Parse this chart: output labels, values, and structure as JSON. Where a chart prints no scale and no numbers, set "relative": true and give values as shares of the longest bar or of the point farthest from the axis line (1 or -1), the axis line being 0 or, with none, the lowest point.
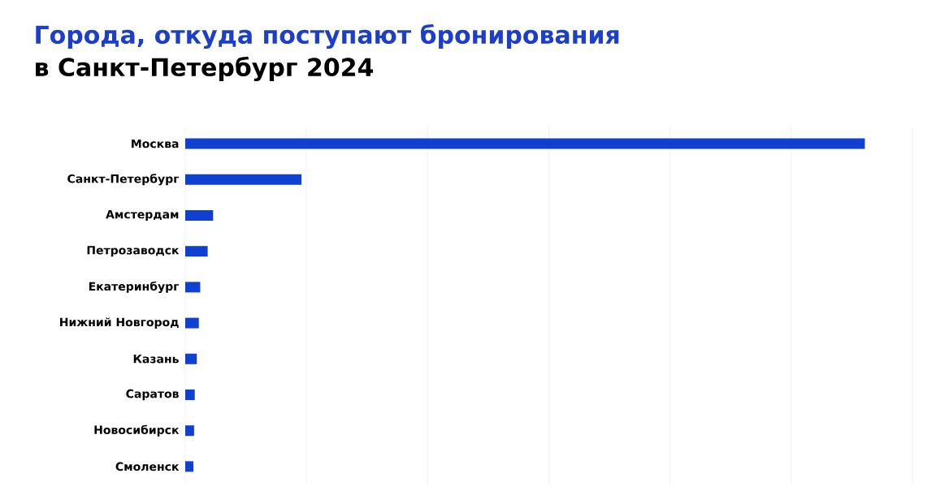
{
  "chart_data": {
    "type": "bar",
    "orientation": "horizontal",
    "relative": true,
    "title": "Города, откуда поступают бронирования",
    "subtitle": "в Санкт-Петербург 2024",
    "categories": [
      "Москва",
      "Санкт-Петербург",
      "Амстердам",
      "Петрозаводск",
      "Екатеринбург",
      "Нижний Новгород",
      "Казань",
      "Саратов",
      "Новосибирск",
      "Смоленск"
    ],
    "values": [
      1,
      0.171,
      0.041,
      0.033,
      0.022,
      0.02,
      0.017,
      0.014,
      0.013,
      0.012
    ],
    "color": "#1040d0",
    "grid": "x"
  }
}
